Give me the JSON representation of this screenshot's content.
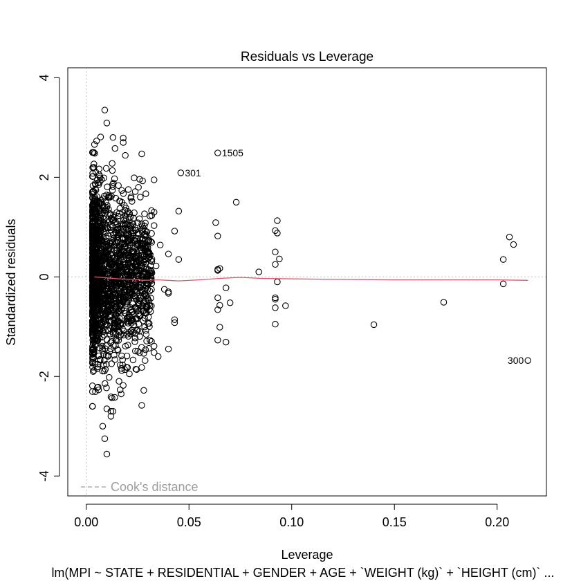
{
  "chart_data": {
    "type": "scatter",
    "title": "Residuals vs Leverage",
    "xlabel": "Leverage",
    "ylabel": "Standardized residuals",
    "subtitle": "lm(MPI ~ STATE + RESIDENTIAL + GENDER + AGE + `WEIGHT (kg)` + `HEIGHT (cm)` ...",
    "xlim": [
      -0.009,
      0.224
    ],
    "ylim": [
      -4.4,
      4.2
    ],
    "x_ticks": [
      {
        "value": 0.0,
        "label": "0.00"
      },
      {
        "value": 0.05,
        "label": "0.05"
      },
      {
        "value": 0.1,
        "label": "0.10"
      },
      {
        "value": 0.15,
        "label": "0.15"
      },
      {
        "value": 0.2,
        "label": "0.20"
      }
    ],
    "y_ticks": [
      {
        "value": -4,
        "label": "-4"
      },
      {
        "value": -2,
        "label": "-2"
      },
      {
        "value": 0,
        "label": "0"
      },
      {
        "value": 2,
        "label": "2"
      },
      {
        "value": 4,
        "label": "4"
      }
    ],
    "grid": false,
    "legend": {
      "position": "bottom-left",
      "entries": [
        "Cook's distance"
      ]
    },
    "colors": {
      "points": "#000000",
      "smooth": "#df536b",
      "reference": "#bebebe",
      "legend_text": "#9e9e9e"
    },
    "labeled_points": [
      {
        "x": 0.064,
        "y": 2.49,
        "label": "1505",
        "side": "right"
      },
      {
        "x": 0.046,
        "y": 2.09,
        "label": "301",
        "side": "right"
      },
      {
        "x": 0.215,
        "y": -1.68,
        "label": "300",
        "side": "left"
      }
    ],
    "sparse_points": [
      [
        0.027,
        2.47
      ],
      [
        0.026,
        1.96
      ],
      [
        0.033,
        1.95
      ],
      [
        0.029,
        1.67
      ],
      [
        0.033,
        1.3
      ],
      [
        0.045,
        1.32
      ],
      [
        0.027,
        1.06
      ],
      [
        0.033,
        1.03
      ],
      [
        0.036,
        0.64
      ],
      [
        0.04,
        0.46
      ],
      [
        0.045,
        0.35
      ],
      [
        0.043,
        0.92
      ],
      [
        0.034,
        0.22
      ],
      [
        0.038,
        -0.25
      ],
      [
        0.04,
        -0.33
      ],
      [
        0.04,
        -0.3
      ],
      [
        0.043,
        -0.86
      ],
      [
        0.043,
        -0.92
      ],
      [
        0.04,
        -1.45
      ],
      [
        0.035,
        -1.6
      ],
      [
        0.033,
        -1.52
      ],
      [
        0.033,
        -1.39
      ],
      [
        0.027,
        -1.82
      ],
      [
        0.028,
        -2.28
      ],
      [
        0.027,
        -2.58
      ],
      [
        0.031,
        -1.27
      ],
      [
        0.029,
        -0.61
      ],
      [
        0.026,
        -0.22
      ],
      [
        0.063,
        1.09
      ],
      [
        0.064,
        0.82
      ],
      [
        0.064,
        0.15
      ],
      [
        0.065,
        0.17
      ],
      [
        0.064,
        0.13
      ],
      [
        0.073,
        1.5
      ],
      [
        0.068,
        -0.22
      ],
      [
        0.064,
        -0.42
      ],
      [
        0.065,
        -0.57
      ],
      [
        0.064,
        -0.66
      ],
      [
        0.065,
        -1.01
      ],
      [
        0.064,
        -1.27
      ],
      [
        0.068,
        -1.31
      ],
      [
        0.07,
        -0.52
      ],
      [
        0.084,
        0.1
      ],
      [
        0.093,
        1.13
      ],
      [
        0.092,
        0.93
      ],
      [
        0.093,
        0.88
      ],
      [
        0.094,
        0.36
      ],
      [
        0.092,
        0.5
      ],
      [
        0.092,
        0.25
      ],
      [
        0.093,
        -0.1
      ],
      [
        0.092,
        -0.42
      ],
      [
        0.092,
        -0.45
      ],
      [
        0.092,
        -0.62
      ],
      [
        0.097,
        -0.58
      ],
      [
        0.092,
        -0.95
      ],
      [
        0.14,
        -0.96
      ],
      [
        0.174,
        -0.51
      ],
      [
        0.206,
        0.8
      ],
      [
        0.208,
        0.65
      ],
      [
        0.203,
        0.35
      ],
      [
        0.203,
        -0.14
      ]
    ],
    "outlier_points": [
      [
        0.009,
        3.35
      ],
      [
        0.01,
        3.09
      ],
      [
        0.009,
        -3.25
      ],
      [
        0.01,
        -3.56
      ],
      [
        0.008,
        -3.0
      ],
      [
        0.013,
        -2.7
      ],
      [
        0.012,
        -2.7
      ],
      [
        0.007,
        2.81
      ],
      [
        0.013,
        2.8
      ],
      [
        0.018,
        2.79
      ],
      [
        0.005,
        2.73
      ],
      [
        0.018,
        2.7
      ],
      [
        0.019,
        2.44
      ],
      [
        0.004,
        2.66
      ],
      [
        0.014,
        2.58
      ],
      [
        0.01,
        -2.65
      ],
      [
        0.012,
        -2.8
      ],
      [
        0.006,
        -2.27
      ],
      [
        0.017,
        -2.35
      ],
      [
        0.018,
        -2.18
      ]
    ],
    "dense_cloud": {
      "count": 1800,
      "x_range": [
        0.003,
        0.032
      ],
      "y_sd": 0.95,
      "y_range": [
        -2.6,
        2.5
      ]
    },
    "smooth_line": [
      [
        0.004,
        0.0
      ],
      [
        0.01,
        -0.02
      ],
      [
        0.016,
        -0.04
      ],
      [
        0.022,
        -0.05
      ],
      [
        0.028,
        -0.07
      ],
      [
        0.035,
        -0.06
      ],
      [
        0.045,
        -0.08
      ],
      [
        0.055,
        -0.06
      ],
      [
        0.065,
        -0.03
      ],
      [
        0.075,
        -0.01
      ],
      [
        0.085,
        -0.03
      ],
      [
        0.1,
        -0.04
      ],
      [
        0.12,
        -0.05
      ],
      [
        0.15,
        -0.06
      ],
      [
        0.18,
        -0.06
      ],
      [
        0.2,
        -0.06
      ],
      [
        0.215,
        -0.07
      ]
    ]
  }
}
